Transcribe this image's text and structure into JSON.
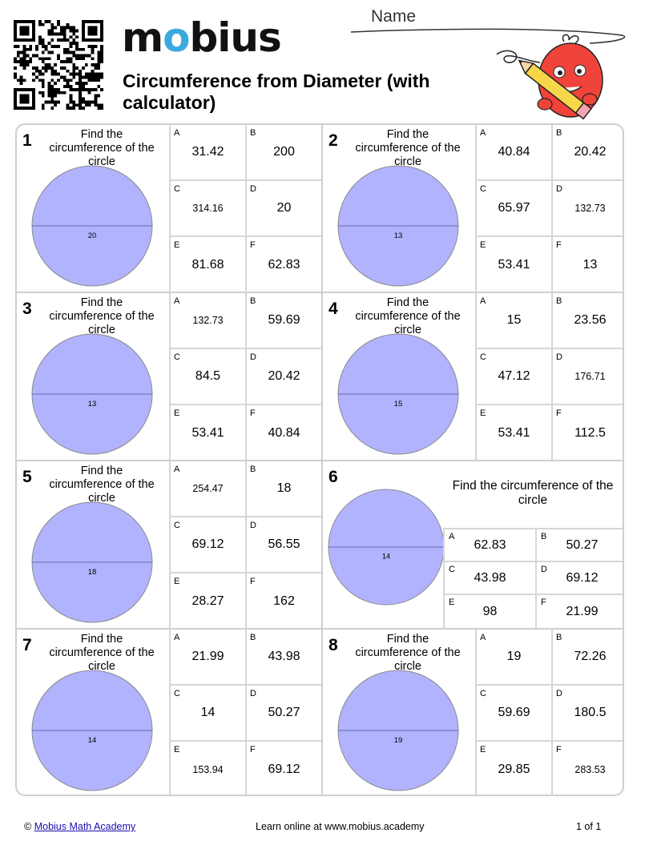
{
  "header": {
    "logo_prefix": "m",
    "logo_drop": "o",
    "logo_suffix": "bius",
    "title": "Circumference from Diameter (with calculator)",
    "name_label": "Name"
  },
  "colors": {
    "circle_fill": "#b1b3ff",
    "circle_stroke": "#8a8a8a",
    "logo_drop": "#3aa9e0",
    "mascot": "#f0443a",
    "pencil": "#f7d64a"
  },
  "prompt_text": "Find the circumference of the circle",
  "problems": [
    {
      "number": "1",
      "diameter": "20",
      "choices": [
        {
          "letter": "A",
          "value": "31.42"
        },
        {
          "letter": "B",
          "value": "200"
        },
        {
          "letter": "C",
          "value": "314.16"
        },
        {
          "letter": "D",
          "value": "20"
        },
        {
          "letter": "E",
          "value": "81.68"
        },
        {
          "letter": "F",
          "value": "62.83"
        }
      ]
    },
    {
      "number": "2",
      "diameter": "13",
      "choices": [
        {
          "letter": "A",
          "value": "40.84"
        },
        {
          "letter": "B",
          "value": "20.42"
        },
        {
          "letter": "C",
          "value": "65.97"
        },
        {
          "letter": "D",
          "value": "132.73"
        },
        {
          "letter": "E",
          "value": "53.41"
        },
        {
          "letter": "F",
          "value": "13"
        }
      ]
    },
    {
      "number": "3",
      "diameter": "13",
      "choices": [
        {
          "letter": "A",
          "value": "132.73"
        },
        {
          "letter": "B",
          "value": "59.69"
        },
        {
          "letter": "C",
          "value": "84.5"
        },
        {
          "letter": "D",
          "value": "20.42"
        },
        {
          "letter": "E",
          "value": "53.41"
        },
        {
          "letter": "F",
          "value": "40.84"
        }
      ]
    },
    {
      "number": "4",
      "diameter": "15",
      "choices": [
        {
          "letter": "A",
          "value": "15"
        },
        {
          "letter": "B",
          "value": "23.56"
        },
        {
          "letter": "C",
          "value": "47.12"
        },
        {
          "letter": "D",
          "value": "176.71"
        },
        {
          "letter": "E",
          "value": "53.41"
        },
        {
          "letter": "F",
          "value": "112.5"
        }
      ]
    },
    {
      "number": "5",
      "diameter": "18",
      "choices": [
        {
          "letter": "A",
          "value": "254.47"
        },
        {
          "letter": "B",
          "value": "18"
        },
        {
          "letter": "C",
          "value": "69.12"
        },
        {
          "letter": "D",
          "value": "56.55"
        },
        {
          "letter": "E",
          "value": "28.27"
        },
        {
          "letter": "F",
          "value": "162"
        }
      ]
    },
    {
      "number": "6",
      "diameter": "14",
      "choices": [
        {
          "letter": "A",
          "value": "62.83"
        },
        {
          "letter": "B",
          "value": "50.27"
        },
        {
          "letter": "C",
          "value": "43.98"
        },
        {
          "letter": "D",
          "value": "69.12"
        },
        {
          "letter": "E",
          "value": "98"
        },
        {
          "letter": "F",
          "value": "21.99"
        }
      ]
    },
    {
      "number": "7",
      "diameter": "14",
      "choices": [
        {
          "letter": "A",
          "value": "21.99"
        },
        {
          "letter": "B",
          "value": "43.98"
        },
        {
          "letter": "C",
          "value": "14"
        },
        {
          "letter": "D",
          "value": "50.27"
        },
        {
          "letter": "E",
          "value": "153.94"
        },
        {
          "letter": "F",
          "value": "69.12"
        }
      ]
    },
    {
      "number": "8",
      "diameter": "19",
      "choices": [
        {
          "letter": "A",
          "value": "19"
        },
        {
          "letter": "B",
          "value": "72.26"
        },
        {
          "letter": "C",
          "value": "59.69"
        },
        {
          "letter": "D",
          "value": "180.5"
        },
        {
          "letter": "E",
          "value": "29.85"
        },
        {
          "letter": "F",
          "value": "283.53"
        }
      ]
    }
  ],
  "footer": {
    "copyright": "©",
    "link_text": "Mobius Math Academy",
    "center": "Learn online at www.mobius.academy",
    "page": "1 of 1"
  }
}
